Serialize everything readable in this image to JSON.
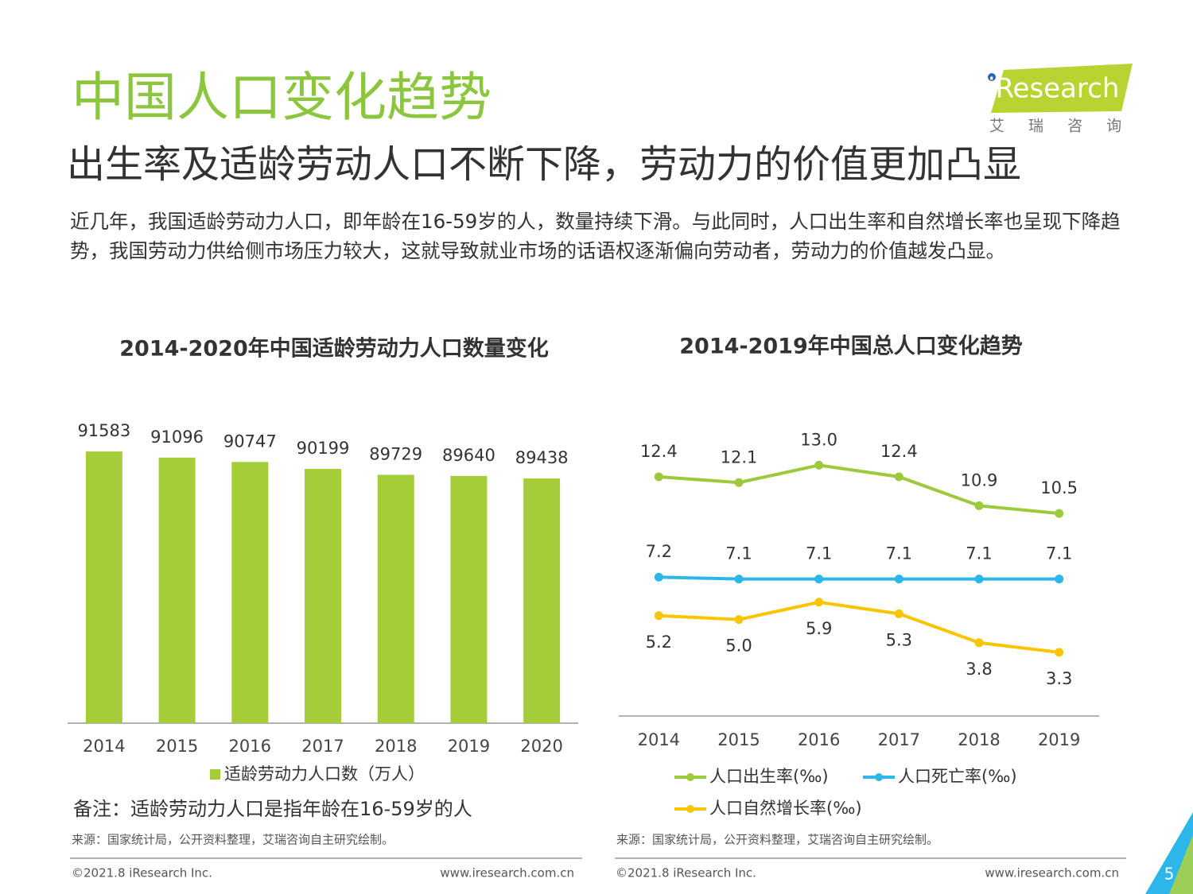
{
  "header": {
    "title": "中国人口变化趋势",
    "subtitle": "出生率及适龄劳动人口不断下降，劳动力的价值更加凸显",
    "logo": "iResearch",
    "logo_cn": "艾 瑞 咨 询"
  },
  "intro": "近几年，我国适龄劳动力人口，即年龄在16-59岁的人，数量持续下滑。与此同时，人口出生率和自然增长率也呈现下降趋势，我国劳动力供给侧市场压力较大，这就导致就业市场的话语权逐渐偏向劳动者，劳动力的价值越发凸显。",
  "chart_data": [
    {
      "type": "bar",
      "title": "2014-2020年中国适龄劳动力人口数量变化",
      "categories": [
        "2014",
        "2015",
        "2016",
        "2017",
        "2018",
        "2019",
        "2020"
      ],
      "series": [
        {
          "name": "适龄劳动力人口数（万人）",
          "color": "#a5cd39",
          "values": [
            91583,
            91096,
            90747,
            90199,
            89729,
            89640,
            89438
          ]
        }
      ],
      "ylim": [
        70000,
        95000
      ]
    },
    {
      "type": "line",
      "title": "2014-2019年中国总人口变化趋势",
      "categories": [
        "2014",
        "2015",
        "2016",
        "2017",
        "2018",
        "2019"
      ],
      "series": [
        {
          "name": "人口出生率(‰)",
          "color": "#9dc93c",
          "values": [
            12.4,
            12.1,
            13.0,
            12.4,
            10.9,
            10.5
          ],
          "value_labels": [
            "12.4",
            "12.1",
            "13.0",
            "12.4",
            "10.9",
            "10.5"
          ]
        },
        {
          "name": "人口死亡率(‰)",
          "color": "#2cb6ea",
          "values": [
            7.2,
            7.1,
            7.1,
            7.1,
            7.1,
            7.1
          ],
          "value_labels": [
            "7.2",
            "7.1",
            "7.1",
            "7.1",
            "7.1",
            "7.1"
          ]
        },
        {
          "name": "人口自然增长率(‰)",
          "color": "#f7c600",
          "values": [
            5.2,
            5.0,
            5.9,
            5.3,
            3.8,
            3.3
          ],
          "value_labels": [
            "5.2",
            "5.0",
            "5.9",
            "5.3",
            "3.8",
            "3.3"
          ]
        }
      ],
      "ylim": [
        0,
        14.5
      ]
    }
  ],
  "notes": {
    "remark": "备注：适龄劳动力人口是指年龄在16-59岁的人",
    "sources": [
      "来源：国家统计局，公开资料整理，艾瑞咨询自主研究绘制。",
      "来源：国家统计局，公开资料整理，艾瑞咨询自主研究绘制。"
    ],
    "copyright": [
      "©2021.8 iResearch Inc.",
      "©2021.8 iResearch Inc."
    ],
    "urls": [
      "www.iresearch.com.cn",
      "www.iresearch.com.cn"
    ]
  },
  "page_number": 5
}
